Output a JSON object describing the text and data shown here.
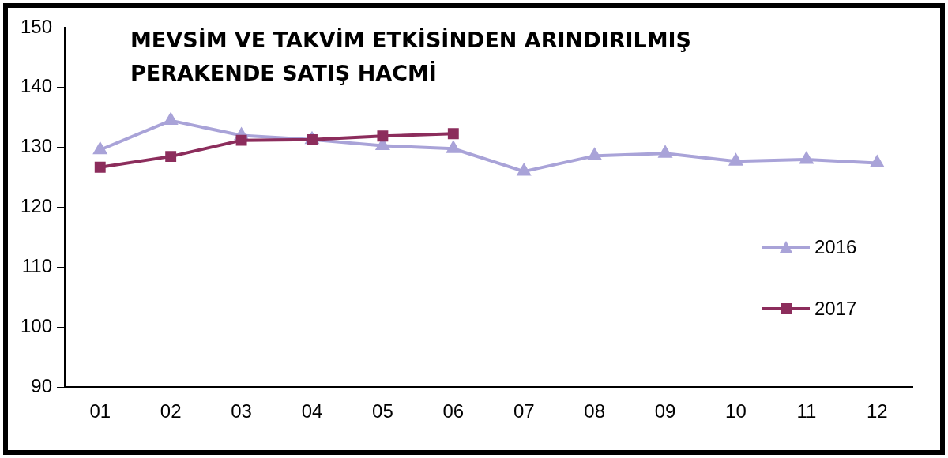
{
  "chart_data": {
    "type": "line",
    "title": "MEVSİM VE TAKVİM ETKİSİNDEN ARINDIRILMIŞ\nPERAKENDE SATIŞ HACMİ",
    "categories": [
      "01",
      "02",
      "03",
      "04",
      "05",
      "06",
      "07",
      "08",
      "09",
      "10",
      "11",
      "12"
    ],
    "series": [
      {
        "name": "2016",
        "color": "#a9a3d8",
        "marker": "triangle",
        "values": [
          129.6,
          134.5,
          132,
          131.3,
          130.3,
          129.8,
          126,
          128.6,
          129,
          127.7,
          128,
          127.4
        ]
      },
      {
        "name": "2017",
        "color": "#8c2d5c",
        "marker": "square",
        "values": [
          126.7,
          128.5,
          131.2,
          131.3,
          131.9,
          132.3,
          null,
          null,
          null,
          null,
          null,
          null
        ]
      }
    ],
    "ylim": [
      90,
      150
    ],
    "yticks": [
      90,
      100,
      110,
      120,
      130,
      140,
      150
    ],
    "grid": false,
    "legend": "right",
    "line_style": "solid"
  }
}
